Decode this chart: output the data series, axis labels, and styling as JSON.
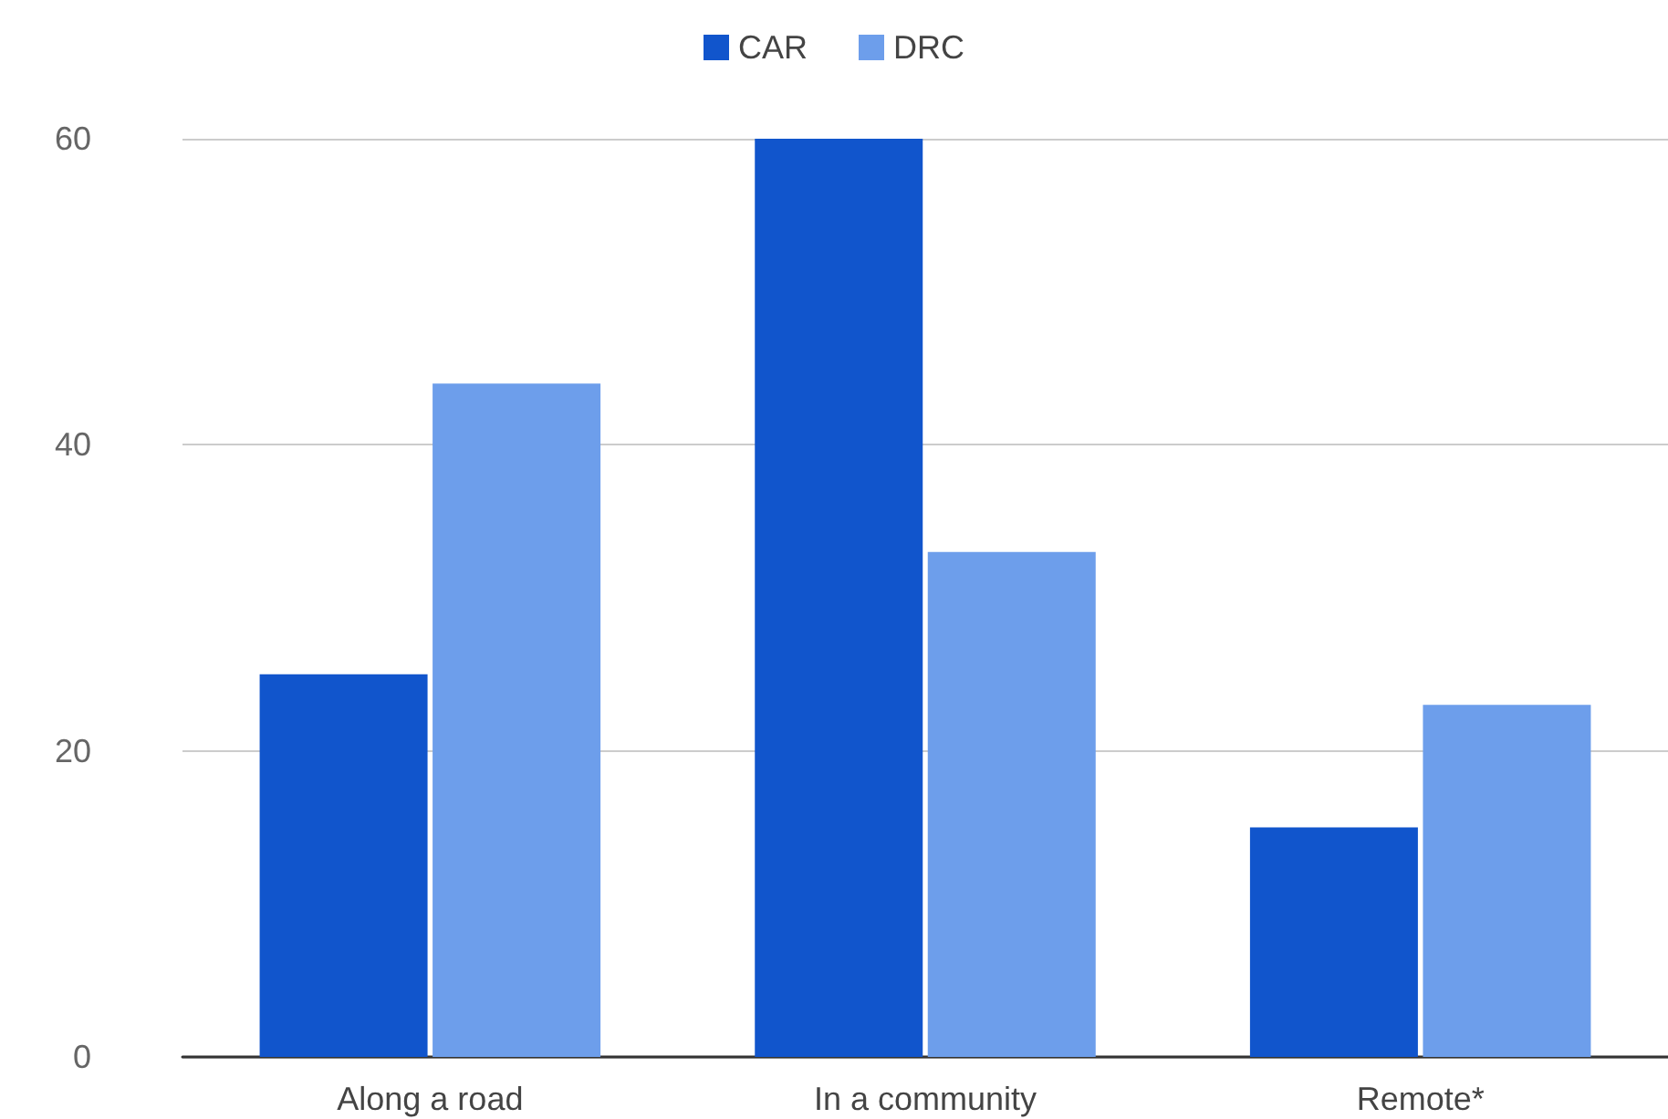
{
  "chart_data": {
    "type": "bar",
    "categories": [
      "Along a road",
      "In a community",
      "Remote*"
    ],
    "series": [
      {
        "name": "CAR",
        "color": "#1155cc",
        "values": [
          25,
          60,
          15
        ]
      },
      {
        "name": "DRC",
        "color": "#6d9eeb",
        "values": [
          44,
          33,
          23
        ]
      }
    ],
    "ylim": [
      0,
      60
    ],
    "yticks": [
      0,
      20,
      40,
      60
    ],
    "grid": "y",
    "legend": "top"
  }
}
